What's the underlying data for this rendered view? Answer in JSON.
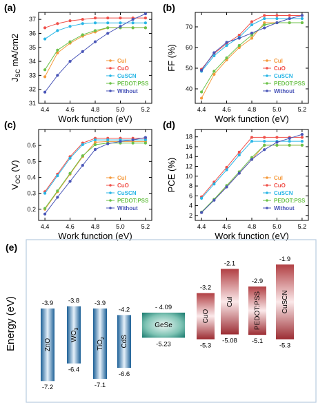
{
  "series_styles": [
    {
      "name": "CuI",
      "color": "#f59a3c",
      "marker": "circle"
    },
    {
      "name": "CuO",
      "color": "#f0504a",
      "marker": "circle"
    },
    {
      "name": "CuSCN",
      "color": "#29b6e6",
      "marker": "circle"
    },
    {
      "name": "PEDOT:PSS",
      "color": "#6cc24a",
      "marker": "circle"
    },
    {
      "name": "Without",
      "color": "#4a56b8",
      "marker": "circle"
    }
  ],
  "chart_data": [
    {
      "type": "line",
      "panel": "(a)",
      "xlabel": "Work function (eV)",
      "ylabel": "J_SC mA/cm2",
      "ylabel_main": "J",
      "ylabel_sub": "SC",
      "ylabel_rest": " mA/cm2",
      "xlim": [
        4.35,
        5.25
      ],
      "ylim": [
        31,
        37.5
      ],
      "xticks": [
        4.4,
        4.6,
        4.8,
        5.0,
        5.2
      ],
      "xtick_labels": [
        "4.4",
        "4.6",
        "4.8",
        "5.0",
        "5.2"
      ],
      "yticks": [
        31,
        32,
        33,
        34,
        35,
        36,
        37
      ],
      "ytick_labels": [
        "31",
        "32",
        "33",
        "34",
        "35",
        "36",
        "37"
      ],
      "legend_position": "lower-right",
      "x": [
        4.4,
        4.5,
        4.6,
        4.7,
        4.8,
        4.9,
        5.0,
        5.1,
        5.2
      ],
      "series": [
        {
          "name": "CuI",
          "values": [
            32.9,
            34.6,
            35.3,
            35.8,
            36.1,
            36.4,
            36.4,
            36.4,
            36.4
          ]
        },
        {
          "name": "CuO",
          "values": [
            36.4,
            36.7,
            36.9,
            37.0,
            37.1,
            37.1,
            37.1,
            37.1,
            37.1
          ]
        },
        {
          "name": "CuSCN",
          "values": [
            35.6,
            36.2,
            36.5,
            36.7,
            36.75,
            36.75,
            36.75,
            36.75,
            36.75
          ]
        },
        {
          "name": "PEDOT:PSS",
          "values": [
            33.4,
            34.8,
            35.4,
            35.9,
            36.2,
            36.4,
            36.4,
            36.4,
            36.4
          ]
        },
        {
          "name": "Without",
          "values": [
            31.8,
            33.0,
            34.0,
            34.7,
            35.4,
            36.0,
            36.5,
            37.0,
            37.4
          ]
        }
      ]
    },
    {
      "type": "line",
      "panel": "(b)",
      "xlabel": "Work function (eV)",
      "ylabel": "FF (%)",
      "xlim": [
        4.35,
        5.25
      ],
      "ylim": [
        33,
        77
      ],
      "xticks": [
        4.4,
        4.6,
        4.8,
        5.0,
        5.2
      ],
      "xtick_labels": [
        "4.4",
        "4.6",
        "4.8",
        "5.0",
        "5.2"
      ],
      "yticks": [
        40,
        50,
        60,
        70
      ],
      "ytick_labels": [
        "40",
        "50",
        "60",
        "70"
      ],
      "legend_position": "lower-right",
      "x": [
        4.4,
        4.5,
        4.6,
        4.7,
        4.8,
        4.9,
        5.0,
        5.1,
        5.2
      ],
      "series": [
        {
          "name": "CuI",
          "values": [
            35.5,
            47.0,
            54.0,
            60.0,
            64.5,
            72.0,
            72.0,
            72.0,
            72.0
          ]
        },
        {
          "name": "CuO",
          "values": [
            49.5,
            57.0,
            62.0,
            66.0,
            72.5,
            75.5,
            75.5,
            75.5,
            75.5
          ]
        },
        {
          "name": "CuSCN",
          "values": [
            48.5,
            56.0,
            61.0,
            65.0,
            71.0,
            74.0,
            74.0,
            74.0,
            74.0
          ]
        },
        {
          "name": "PEDOT:PSS",
          "values": [
            38.5,
            48.5,
            55.0,
            61.0,
            66.0,
            71.0,
            72.0,
            72.0,
            72.0
          ]
        },
        {
          "name": "Without",
          "values": [
            49.0,
            57.5,
            62.5,
            64.5,
            67.0,
            69.5,
            72.0,
            74.0,
            75.5
          ]
        }
      ]
    },
    {
      "type": "line",
      "panel": "(c)",
      "xlabel": "Work function (eV)",
      "ylabel": "V_OC (V)",
      "ylabel_main": "V",
      "ylabel_sub": "OC",
      "ylabel_rest": " (V)",
      "xlim": [
        4.35,
        5.25
      ],
      "ylim": [
        0.13,
        0.7
      ],
      "xticks": [
        4.4,
        4.6,
        4.8,
        5.0,
        5.2
      ],
      "xtick_labels": [
        "4.4",
        "4.6",
        "4.8",
        "5.0",
        "5.2"
      ],
      "yticks": [
        0.2,
        0.3,
        0.4,
        0.5,
        0.6
      ],
      "ytick_labels": [
        "0.2",
        "0.3",
        "0.4",
        "0.5",
        "0.6"
      ],
      "legend_position": "lower-right",
      "x": [
        4.4,
        4.5,
        4.6,
        4.7,
        4.8,
        4.9,
        5.0,
        5.1,
        5.2
      ],
      "series": [
        {
          "name": "CuI",
          "values": [
            0.2,
            0.31,
            0.42,
            0.53,
            0.62,
            0.625,
            0.625,
            0.625,
            0.625
          ]
        },
        {
          "name": "CuO",
          "values": [
            0.31,
            0.42,
            0.53,
            0.615,
            0.645,
            0.645,
            0.645,
            0.645,
            0.645
          ]
        },
        {
          "name": "CuSCN",
          "values": [
            0.3,
            0.41,
            0.52,
            0.605,
            0.635,
            0.635,
            0.635,
            0.635,
            0.635
          ]
        },
        {
          "name": "PEDOT:PSS",
          "values": [
            0.205,
            0.315,
            0.425,
            0.535,
            0.605,
            0.615,
            0.615,
            0.615,
            0.615
          ]
        },
        {
          "name": "Without",
          "values": [
            0.17,
            0.275,
            0.375,
            0.475,
            0.575,
            0.61,
            0.625,
            0.635,
            0.65
          ]
        }
      ]
    },
    {
      "type": "line",
      "panel": "(d)",
      "xlabel": "Work function (eV)",
      "ylabel": "PCE (%)",
      "xlim": [
        4.35,
        5.25
      ],
      "ylim": [
        1,
        19.5
      ],
      "xticks": [
        4.4,
        4.6,
        4.8,
        5.0,
        5.2
      ],
      "xtick_labels": [
        "4.4",
        "4.6",
        "4.8",
        "5.0",
        "5.2"
      ],
      "yticks": [
        2,
        4,
        6,
        8,
        10,
        12,
        14,
        16,
        18
      ],
      "ytick_labels": [
        "2",
        "4",
        "6",
        "8",
        "10",
        "12",
        "14",
        "16",
        "18"
      ],
      "legend_position": "lower-right",
      "x": [
        4.4,
        4.5,
        4.6,
        4.7,
        4.8,
        4.9,
        5.0,
        5.1,
        5.2
      ],
      "series": [
        {
          "name": "CuI",
          "values": [
            2.6,
            5.2,
            7.9,
            10.6,
            13.4,
            16.3,
            16.3,
            16.3,
            16.3
          ]
        },
        {
          "name": "CuO",
          "values": [
            5.8,
            8.8,
            11.8,
            14.9,
            17.9,
            17.9,
            17.9,
            17.9,
            17.9
          ]
        },
        {
          "name": "CuSCN",
          "values": [
            5.5,
            8.4,
            11.3,
            14.3,
            17.1,
            17.1,
            17.1,
            17.1,
            17.1
          ]
        },
        {
          "name": "PEDOT:PSS",
          "values": [
            2.7,
            5.3,
            8.1,
            10.9,
            13.8,
            16.3,
            16.3,
            16.3,
            16.3
          ]
        },
        {
          "name": "Without",
          "values": [
            2.6,
            5.1,
            7.8,
            10.6,
            13.4,
            15.4,
            16.9,
            17.7,
            18.5
          ]
        }
      ]
    }
  ],
  "band_diagram": {
    "panel": "(e)",
    "ylabel": "Energy (eV)",
    "ylim": [
      -7.6,
      -1.4
    ],
    "materials": [
      {
        "name": "ZnO",
        "subscript": "",
        "cb": -3.9,
        "vb": -7.2,
        "cb_label": "-3.9",
        "vb_label": "-7.2",
        "style": "blue"
      },
      {
        "name": "WO",
        "subscript": "3",
        "cb": -3.8,
        "vb": -6.4,
        "cb_label": "-3.8",
        "vb_label": "-6.4",
        "style": "blue"
      },
      {
        "name": "TiO",
        "subscript": "2",
        "cb": -3.9,
        "vb": -7.1,
        "cb_label": "-3.9",
        "vb_label": "-7.1",
        "style": "blue"
      },
      {
        "name": "CdS",
        "subscript": "",
        "cb": -4.2,
        "vb": -6.6,
        "cb_label": "-4.2",
        "vb_label": "-6.6",
        "style": "blue"
      },
      {
        "name": "GeSe",
        "subscript": "",
        "cb": -4.09,
        "vb": -5.23,
        "cb_label": "- 4.09",
        "vb_label": "-5.23",
        "style": "teal"
      },
      {
        "name": "CuO",
        "subscript": "",
        "cb": -3.2,
        "vb": -5.3,
        "cb_label": "-3.2",
        "vb_label": "-5.3",
        "style": "red"
      },
      {
        "name": "CuI",
        "subscript": "",
        "cb": -2.1,
        "vb": -5.08,
        "cb_label": "-2.1",
        "vb_label": "-5.08",
        "style": "red"
      },
      {
        "name": "PEDOT:PSS",
        "subscript": "",
        "cb": -2.9,
        "vb": -5.1,
        "cb_label": "-2.9",
        "vb_label": "-5.1",
        "style": "red"
      },
      {
        "name": "CuSCN",
        "subscript": "",
        "cb": -1.9,
        "vb": -5.3,
        "cb_label": "-1.9",
        "vb_label": "-5.3",
        "style": "red"
      }
    ]
  }
}
